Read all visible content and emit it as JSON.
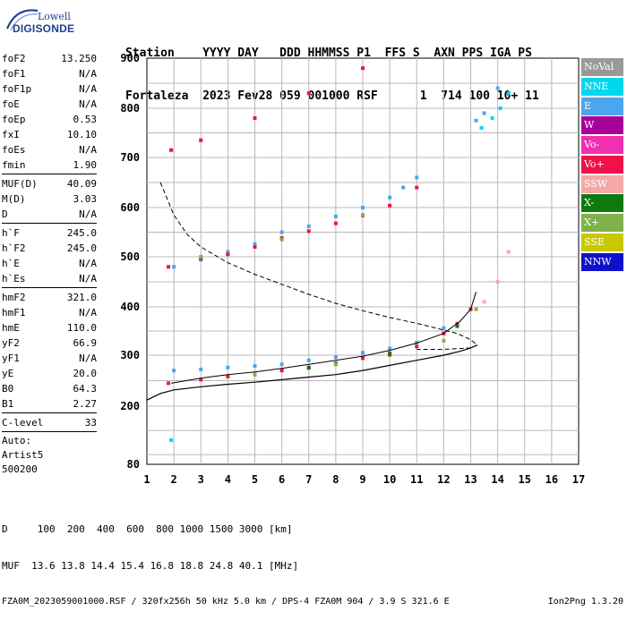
{
  "logo": {
    "line1": "Lowell",
    "line2": "DIGISONDE"
  },
  "header": {
    "line1": "Station    YYYY DAY   DDD HHMMSS P1  FFS S  AXN PPS IGA PS",
    "line2": "Fortaleza  2023 Fev28 059 001000 RSF      1  714 100 10+ 11"
  },
  "params": {
    "group1": [
      {
        "name": "foF2",
        "value": "13.250"
      },
      {
        "name": "foF1",
        "value": "N/A"
      },
      {
        "name": "foF1p",
        "value": "N/A"
      },
      {
        "name": "foE",
        "value": "N/A"
      },
      {
        "name": "foEp",
        "value": "0.53"
      },
      {
        "name": "fxI",
        "value": "10.10"
      },
      {
        "name": "foEs",
        "value": "N/A"
      },
      {
        "name": "fmin",
        "value": "1.90"
      }
    ],
    "group2": [
      {
        "name": "MUF(D)",
        "value": "40.09"
      },
      {
        "name": "M(D)",
        "value": "3.03"
      },
      {
        "name": "D",
        "value": "N/A"
      }
    ],
    "group3": [
      {
        "name": "h`F",
        "value": "245.0"
      },
      {
        "name": "h`F2",
        "value": "245.0"
      },
      {
        "name": "h`E",
        "value": "N/A"
      },
      {
        "name": "h`Es",
        "value": "N/A"
      }
    ],
    "group4": [
      {
        "name": "hmF2",
        "value": "321.0"
      },
      {
        "name": "hmF1",
        "value": "N/A"
      },
      {
        "name": "hmE",
        "value": "110.0"
      },
      {
        "name": "yF2",
        "value": "66.9"
      },
      {
        "name": "yF1",
        "value": "N/A"
      },
      {
        "name": "yE",
        "value": "20.0"
      },
      {
        "name": "B0",
        "value": "64.3"
      },
      {
        "name": "B1",
        "value": "2.27"
      }
    ],
    "clevel": {
      "name": "C-level",
      "value": "33"
    },
    "auto": [
      "Auto:",
      "Artist5",
      "500200"
    ]
  },
  "legend": [
    {
      "label": "NoVal",
      "color": "#999999"
    },
    {
      "label": "NNE",
      "color": "#00d8f0"
    },
    {
      "label": "E",
      "color": "#4aa6ee"
    },
    {
      "label": "W",
      "color": "#a8009a"
    },
    {
      "label": "Vo-",
      "color": "#f030b0"
    },
    {
      "label": "Vo+",
      "color": "#f0104a"
    },
    {
      "label": "SSW",
      "color": "#f5a8a8"
    },
    {
      "label": "X-",
      "color": "#0e7a0e"
    },
    {
      "label": "X+",
      "color": "#7fb24a"
    },
    {
      "label": "SSE",
      "color": "#c8c800"
    },
    {
      "label": "NNW",
      "color": "#1010cc"
    }
  ],
  "footer": {
    "line1": "D     100  200  400  600  800 1000 1500 3000 [km]",
    "line2": "MUF  13.6 13.8 14.4 15.4 16.8 18.8 24.8 40.1 [MHz]",
    "line3_left": "FZA0M_2023059001000.RSF / 320fx256h 50 kHz 5.0 km / DPS-4 FZA0M 904 / 3.9 S 321.6 E",
    "line3_right": "Ion2Png 1.3.20"
  },
  "chart_data": {
    "type": "scatter",
    "xlim": [
      1,
      17
    ],
    "ylim": [
      80,
      900
    ],
    "xticks": [
      1,
      2,
      3,
      4,
      5,
      6,
      7,
      8,
      9,
      10,
      11,
      12,
      13,
      14,
      15,
      16,
      17
    ],
    "yticks": [
      80,
      200,
      300,
      400,
      500,
      600,
      700,
      800,
      900
    ],
    "grid": true,
    "series": [
      {
        "name": "E",
        "color": "#4aa6ee",
        "points": [
          [
            2,
            270
          ],
          [
            3,
            272
          ],
          [
            4,
            276
          ],
          [
            5,
            279
          ],
          [
            6,
            282
          ],
          [
            7,
            290
          ],
          [
            8,
            296
          ],
          [
            9,
            305
          ],
          [
            10,
            314
          ],
          [
            11,
            326
          ],
          [
            12,
            356
          ],
          [
            2,
            480
          ],
          [
            3,
            494
          ],
          [
            4,
            510
          ],
          [
            5,
            526
          ],
          [
            6,
            550
          ],
          [
            7,
            562
          ],
          [
            8,
            582
          ],
          [
            9,
            600
          ],
          [
            10,
            620
          ],
          [
            10.5,
            640
          ],
          [
            11,
            660
          ],
          [
            13.2,
            775
          ],
          [
            13.5,
            790
          ],
          [
            14,
            840
          ]
        ]
      },
      {
        "name": "Vo+",
        "color": "#f0104a",
        "points": [
          [
            1.8,
            245
          ],
          [
            3,
            252
          ],
          [
            4,
            258
          ],
          [
            5,
            262
          ],
          [
            6,
            270
          ],
          [
            7,
            276
          ],
          [
            8,
            284
          ],
          [
            9,
            294
          ],
          [
            10,
            304
          ],
          [
            11,
            318
          ],
          [
            12,
            345
          ],
          [
            12.5,
            365
          ],
          [
            13,
            395
          ],
          [
            1.8,
            480
          ],
          [
            3,
            496
          ],
          [
            4,
            505
          ],
          [
            5,
            520
          ],
          [
            6,
            538
          ],
          [
            7,
            552
          ],
          [
            8,
            568
          ],
          [
            9,
            584
          ],
          [
            10,
            604
          ],
          [
            11,
            640
          ],
          [
            1.9,
            715
          ],
          [
            3,
            735
          ],
          [
            5,
            780
          ],
          [
            7,
            830
          ],
          [
            9,
            880
          ]
        ]
      },
      {
        "name": "X+",
        "color": "#7fb24a",
        "points": [
          [
            5,
            262
          ],
          [
            8,
            282
          ],
          [
            10,
            300
          ],
          [
            12,
            330
          ],
          [
            13.2,
            395
          ],
          [
            3,
            500
          ],
          [
            6,
            535
          ],
          [
            9,
            585
          ]
        ]
      },
      {
        "name": "X-",
        "color": "#0e7a0e",
        "points": [
          [
            7,
            275
          ],
          [
            10,
            302
          ],
          [
            12.5,
            360
          ]
        ]
      },
      {
        "name": "SSW",
        "color": "#f5a8a8",
        "points": [
          [
            13.5,
            410
          ],
          [
            14,
            450
          ],
          [
            14.4,
            510
          ]
        ]
      },
      {
        "name": "NNE",
        "color": "#00d8f0",
        "points": [
          [
            13.4,
            760
          ],
          [
            13.8,
            780
          ],
          [
            14.1,
            800
          ],
          [
            14.4,
            830
          ],
          [
            1.9,
            130
          ]
        ]
      }
    ],
    "profile": [
      [
        1.0,
        212
      ],
      [
        1.5,
        225
      ],
      [
        2.0,
        232
      ],
      [
        3.0,
        238
      ],
      [
        4.0,
        243
      ],
      [
        5.0,
        247
      ],
      [
        6.0,
        252
      ],
      [
        7.0,
        257
      ],
      [
        8.0,
        262
      ],
      [
        9.0,
        270
      ],
      [
        10.0,
        280
      ],
      [
        11.0,
        290
      ],
      [
        12.0,
        300
      ],
      [
        12.6,
        308
      ],
      [
        13.0,
        315
      ],
      [
        13.25,
        321
      ]
    ],
    "virtual_height": [
      [
        1.9,
        245
      ],
      [
        3,
        255
      ],
      [
        4,
        262
      ],
      [
        5,
        267
      ],
      [
        6,
        274
      ],
      [
        7,
        282
      ],
      [
        8,
        290
      ],
      [
        9,
        298
      ],
      [
        10,
        310
      ],
      [
        11,
        325
      ],
      [
        12,
        345
      ],
      [
        12.6,
        370
      ],
      [
        13,
        395
      ],
      [
        13.2,
        430
      ]
    ],
    "muf_curve": [
      [
        1.5,
        650
      ],
      [
        2.0,
        585
      ],
      [
        2.5,
        545
      ],
      [
        3.0,
        520
      ],
      [
        4.0,
        488
      ],
      [
        5.0,
        465
      ],
      [
        6.0,
        445
      ],
      [
        7.0,
        425
      ],
      [
        8.0,
        407
      ],
      [
        9.0,
        392
      ],
      [
        10.0,
        378
      ],
      [
        11.0,
        366
      ],
      [
        12.0,
        352
      ],
      [
        12.5,
        345
      ],
      [
        13.0,
        332
      ],
      [
        13.25,
        321
      ],
      [
        13.0,
        315
      ],
      [
        12.0,
        312
      ],
      [
        11.0,
        312
      ]
    ]
  }
}
